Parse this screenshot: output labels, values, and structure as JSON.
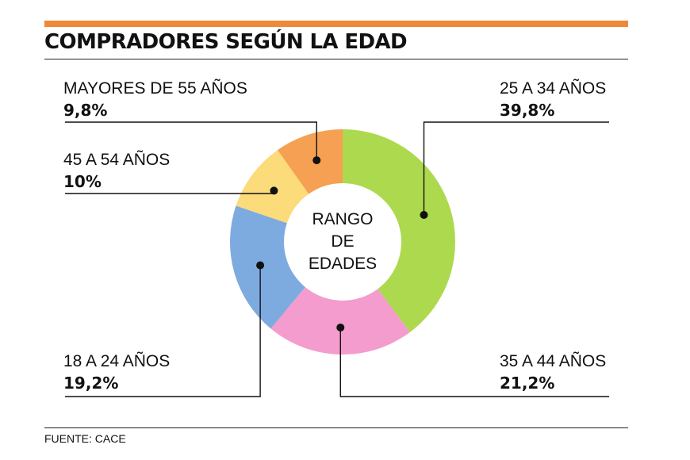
{
  "chart_data": {
    "type": "pie",
    "title": "COMPRADORES SEGÚN LA EDAD",
    "center_label": [
      "RANGO",
      "DE",
      "EDADES"
    ],
    "categories": [
      "25 A 34 AÑOS",
      "35 A 44 AÑOS",
      "18 A 24 AÑOS",
      "45 A 54 AÑOS",
      "MAYORES DE 55 AÑOS"
    ],
    "values": [
      39.8,
      21.2,
      19.2,
      10,
      9.8
    ],
    "value_labels": [
      "39,8%",
      "21,2%",
      "19,2%",
      "10%",
      "9,8%"
    ],
    "colors": [
      "#add94f",
      "#f39ccd",
      "#7eabdf",
      "#fcdb7a",
      "#f5a052"
    ],
    "source": "FUENTE: CACE"
  },
  "colors": {
    "accent_bar": "#f0883a"
  }
}
